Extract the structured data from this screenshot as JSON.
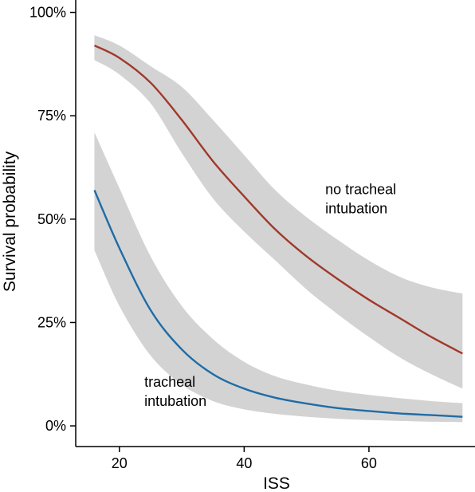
{
  "chart_data": {
    "type": "line",
    "title": "",
    "xlabel": "ISS",
    "ylabel": "Survival probability",
    "xlim": [
      13,
      77
    ],
    "ylim": [
      -0.05,
      1.03
    ],
    "x_ticks": [
      20,
      40,
      60
    ],
    "x_tick_labels": [
      "20",
      "40",
      "60"
    ],
    "y_ticks": [
      0,
      0.25,
      0.5,
      0.75,
      1.0
    ],
    "y_tick_labels": [
      "0%",
      "25%",
      "50%",
      "75%",
      "100%"
    ],
    "grid": false,
    "legend": "none",
    "series": [
      {
        "key": "no_intubation",
        "color": "#A0392B",
        "band_color": "#D3D3D3",
        "x": [
          16,
          20,
          25,
          30,
          35,
          40,
          45,
          50,
          55,
          60,
          65,
          70,
          75
        ],
        "y": [
          0.92,
          0.89,
          0.83,
          0.74,
          0.64,
          0.555,
          0.475,
          0.41,
          0.355,
          0.305,
          0.26,
          0.215,
          0.175
        ],
        "lower": [
          0.885,
          0.85,
          0.78,
          0.66,
          0.55,
          0.47,
          0.4,
          0.33,
          0.27,
          0.215,
          0.165,
          0.125,
          0.09
        ],
        "upper": [
          0.945,
          0.92,
          0.87,
          0.82,
          0.74,
          0.655,
          0.57,
          0.505,
          0.45,
          0.4,
          0.36,
          0.335,
          0.32
        ]
      },
      {
        "key": "intubation",
        "color": "#1F6CA6",
        "band_color": "#D3D3D3",
        "x": [
          16,
          20,
          25,
          30,
          35,
          40,
          45,
          50,
          55,
          60,
          65,
          70,
          75
        ],
        "y": [
          0.57,
          0.43,
          0.28,
          0.185,
          0.125,
          0.09,
          0.068,
          0.054,
          0.043,
          0.036,
          0.03,
          0.026,
          0.022
        ],
        "lower": [
          0.425,
          0.29,
          0.17,
          0.1,
          0.06,
          0.04,
          0.029,
          0.022,
          0.017,
          0.014,
          0.012,
          0.01,
          0.009
        ],
        "upper": [
          0.71,
          0.575,
          0.41,
          0.29,
          0.21,
          0.155,
          0.12,
          0.1,
          0.085,
          0.075,
          0.067,
          0.06,
          0.055
        ]
      }
    ],
    "annotations": [
      {
        "lines": [
          "no tracheal",
          "intubation"
        ],
        "x": 53,
        "y": 0.56
      },
      {
        "lines": [
          "tracheal",
          "intubation"
        ],
        "x": 24,
        "y": 0.095
      }
    ]
  }
}
